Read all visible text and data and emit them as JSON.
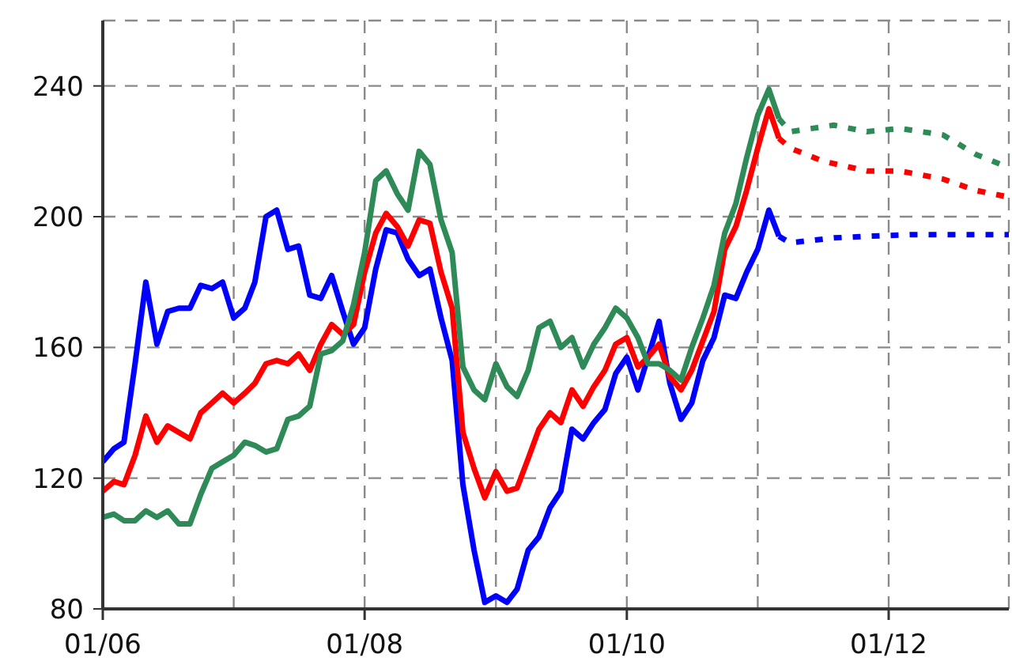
{
  "chart_data": {
    "type": "line",
    "x": [
      "2006-01",
      "2006-02",
      "2006-03",
      "2006-04",
      "2006-05",
      "2006-06",
      "2006-07",
      "2006-08",
      "2006-09",
      "2006-10",
      "2006-11",
      "2006-12",
      "2007-01",
      "2007-02",
      "2007-03",
      "2007-04",
      "2007-05",
      "2007-06",
      "2007-07",
      "2007-08",
      "2007-09",
      "2007-10",
      "2007-11",
      "2007-12",
      "2008-01",
      "2008-02",
      "2008-03",
      "2008-04",
      "2008-05",
      "2008-06",
      "2008-07",
      "2008-08",
      "2008-09",
      "2008-10",
      "2008-11",
      "2008-12",
      "2009-01",
      "2009-02",
      "2009-03",
      "2009-04",
      "2009-05",
      "2009-06",
      "2009-07",
      "2009-08",
      "2009-09",
      "2009-10",
      "2009-11",
      "2009-12",
      "2010-01",
      "2010-02",
      "2010-03",
      "2010-04",
      "2010-05",
      "2010-06",
      "2010-07",
      "2010-08",
      "2010-09",
      "2010-10",
      "2010-11",
      "2010-12",
      "2011-01",
      "2011-02",
      "2011-03"
    ],
    "series": [
      {
        "color": "#0000ff",
        "values": [
          125,
          129,
          131,
          155,
          180,
          161,
          171,
          172,
          172,
          179,
          178,
          180,
          169,
          172,
          180,
          200,
          202,
          190,
          191,
          176,
          175,
          182,
          171,
          161,
          166,
          184,
          196,
          195,
          187,
          182,
          184,
          169,
          156,
          118,
          98,
          82,
          84,
          82,
          86,
          98,
          102,
          111,
          116,
          135,
          132,
          137,
          141,
          152,
          157,
          147,
          157,
          168,
          149,
          138,
          143,
          156,
          163,
          176,
          175,
          183,
          190,
          202,
          194
        ]
      },
      {
        "color": "#ff0000",
        "values": [
          116,
          119,
          118,
          127,
          139,
          131,
          136,
          134,
          132,
          140,
          143,
          146,
          143,
          146,
          149,
          155,
          156,
          155,
          158,
          153,
          161,
          167,
          164,
          167,
          183,
          195,
          201,
          197,
          191,
          199,
          198,
          183,
          172,
          134,
          123,
          114,
          122,
          116,
          117,
          126,
          135,
          140,
          137,
          147,
          142,
          148,
          153,
          161,
          163,
          154,
          157,
          161,
          151,
          147,
          153,
          162,
          171,
          190,
          197,
          208,
          221,
          233,
          224
        ]
      },
      {
        "color": "#2e8b57",
        "values": [
          108,
          109,
          107,
          107,
          110,
          108,
          110,
          106,
          106,
          115,
          123,
          125,
          127,
          131,
          130,
          128,
          129,
          138,
          139,
          142,
          158,
          159,
          162,
          173,
          189,
          211,
          214,
          207,
          202,
          220,
          216,
          199,
          189,
          154,
          147,
          144,
          155,
          148,
          145,
          153,
          166,
          168,
          160,
          163,
          154,
          161,
          166,
          172,
          169,
          163,
          155,
          155,
          153,
          150,
          160,
          169,
          179,
          195,
          204,
          218,
          231,
          239,
          230
        ]
      },
      {
        "color": "#0000ff",
        "line_style": "dotted",
        "x": [
          "2011-03",
          "2011-04",
          "2011-08",
          "2011-11",
          "2012-03",
          "2012-06",
          "2012-09",
          "2012-12"
        ],
        "values": [
          194,
          192,
          193.5,
          194,
          194.5,
          194.5,
          194.5,
          194.5
        ]
      },
      {
        "color": "#ff0000",
        "line_style": "dotted",
        "x": [
          "2011-03",
          "2011-04",
          "2011-07",
          "2011-11",
          "2012-02",
          "2012-06",
          "2012-09",
          "2012-12"
        ],
        "values": [
          224,
          221,
          217,
          214,
          214,
          211.5,
          208,
          206
        ]
      },
      {
        "color": "#2e8b57",
        "line_style": "dotted",
        "x": [
          "2011-03",
          "2011-04",
          "2011-08",
          "2011-11",
          "2012-02",
          "2012-06",
          "2012-09",
          "2012-12"
        ],
        "values": [
          230,
          226,
          228,
          226,
          227,
          225,
          219,
          215
        ]
      }
    ],
    "xlim": [
      "2006-01",
      "2012-12"
    ],
    "xticks": [
      {
        "value": "2006-01",
        "label": "01/06"
      },
      {
        "value": "2007-01",
        "label": null
      },
      {
        "value": "2008-01",
        "label": "01/08"
      },
      {
        "value": "2009-01",
        "label": null
      },
      {
        "value": "2010-01",
        "label": "01/10"
      },
      {
        "value": "2011-01",
        "label": null
      },
      {
        "value": "2012-01",
        "label": "01/12"
      }
    ],
    "ylim": [
      80,
      260
    ],
    "yticks": [
      80,
      120,
      160,
      200,
      240
    ],
    "grid": true
  }
}
